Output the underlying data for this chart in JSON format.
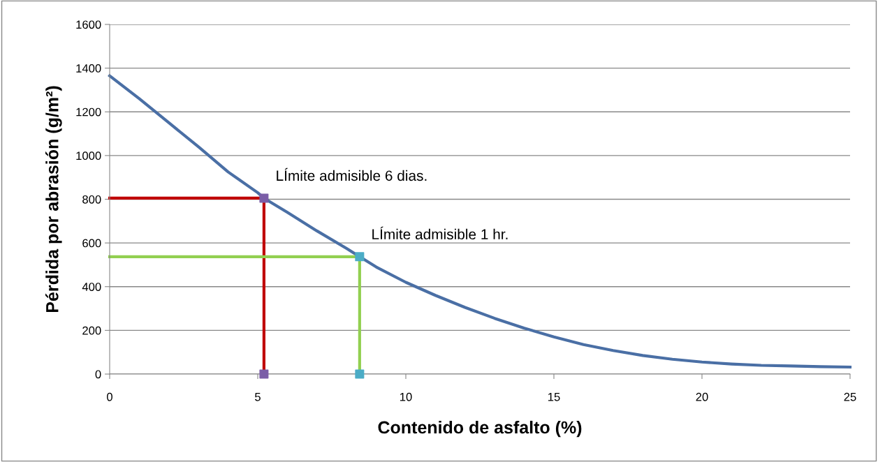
{
  "chart_data": {
    "type": "line",
    "xlabel": "Contenido de asfalto (%)",
    "ylabel": "Pérdida por abrasión (g/m²)",
    "xlim": [
      0,
      25
    ],
    "xticks": [
      0,
      5,
      10,
      15,
      20,
      25
    ],
    "ylim": [
      0,
      1600
    ],
    "yticks": [
      0,
      200,
      400,
      600,
      800,
      1000,
      1200,
      1400,
      1600
    ],
    "grid": "y",
    "legend": false,
    "series": [
      {
        "color": "#4a6fa5",
        "x": [
          0,
          1,
          2,
          3,
          4,
          5,
          5.21,
          6,
          7,
          8,
          8.44,
          9,
          10,
          11,
          12,
          13,
          14,
          15,
          16,
          17,
          18,
          19,
          20,
          21,
          22,
          23,
          24,
          25
        ],
        "values": [
          1365,
          1260,
          1150,
          1040,
          925,
          830,
          805,
          740,
          655,
          575,
          537,
          490,
          420,
          360,
          305,
          255,
          210,
          170,
          135,
          108,
          85,
          68,
          55,
          46,
          40,
          37,
          34,
          32
        ],
        "marker": "none"
      },
      {
        "color": "#c00000",
        "x": [
          0,
          5.21,
          5.21
        ],
        "values": [
          805,
          805,
          0
        ],
        "marker": "none"
      },
      {
        "type": "scatter",
        "color": "#7b5ea7",
        "x": [
          5.21,
          5.21
        ],
        "values": [
          805,
          0
        ],
        "marker": "square"
      },
      {
        "color": "#92d050",
        "x": [
          0,
          8.44,
          8.44
        ],
        "values": [
          537,
          537,
          0
        ],
        "marker": "none"
      },
      {
        "type": "scatter",
        "color": "#4bacc6",
        "x": [
          8.44,
          8.44
        ],
        "values": [
          537,
          0
        ],
        "marker": "square"
      }
    ],
    "annotations": [
      {
        "text": "LÍmite admisible 6 dias.",
        "x": 5.21,
        "y": 805
      },
      {
        "text": "LÍmite admisible 1 hr.",
        "x": 8.44,
        "y": 537
      }
    ]
  }
}
